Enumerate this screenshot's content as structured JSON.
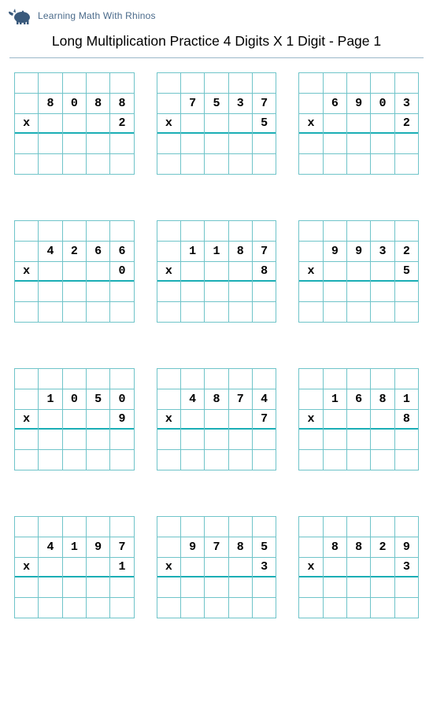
{
  "branding": {
    "logo_text": "Learning Math With Rhinos",
    "logo_color": "#4a6a8a",
    "rhino_color": "#3a5a7c"
  },
  "title": "Long Multiplication Practice 4 Digits X 1 Digit - Page 1",
  "grid": {
    "columns": 5,
    "rows": 5,
    "cell_border_color": "#6fc4c9",
    "underline_color": "#1aaeb5",
    "x_symbol": "x"
  },
  "problems": [
    {
      "multiplicand": [
        "8",
        "0",
        "8",
        "8"
      ],
      "multiplier": "2"
    },
    {
      "multiplicand": [
        "7",
        "5",
        "3",
        "7"
      ],
      "multiplier": "5"
    },
    {
      "multiplicand": [
        "6",
        "9",
        "0",
        "3"
      ],
      "multiplier": "2"
    },
    {
      "multiplicand": [
        "4",
        "2",
        "6",
        "6"
      ],
      "multiplier": "0"
    },
    {
      "multiplicand": [
        "1",
        "1",
        "8",
        "7"
      ],
      "multiplier": "8"
    },
    {
      "multiplicand": [
        "9",
        "9",
        "3",
        "2"
      ],
      "multiplier": "5"
    },
    {
      "multiplicand": [
        "1",
        "0",
        "5",
        "0"
      ],
      "multiplier": "9"
    },
    {
      "multiplicand": [
        "4",
        "8",
        "7",
        "4"
      ],
      "multiplier": "7"
    },
    {
      "multiplicand": [
        "1",
        "6",
        "8",
        "1"
      ],
      "multiplier": "8"
    },
    {
      "multiplicand": [
        "4",
        "1",
        "9",
        "7"
      ],
      "multiplier": "1"
    },
    {
      "multiplicand": [
        "9",
        "7",
        "8",
        "5"
      ],
      "multiplier": "3"
    },
    {
      "multiplicand": [
        "8",
        "8",
        "2",
        "9"
      ],
      "multiplier": "3"
    }
  ]
}
